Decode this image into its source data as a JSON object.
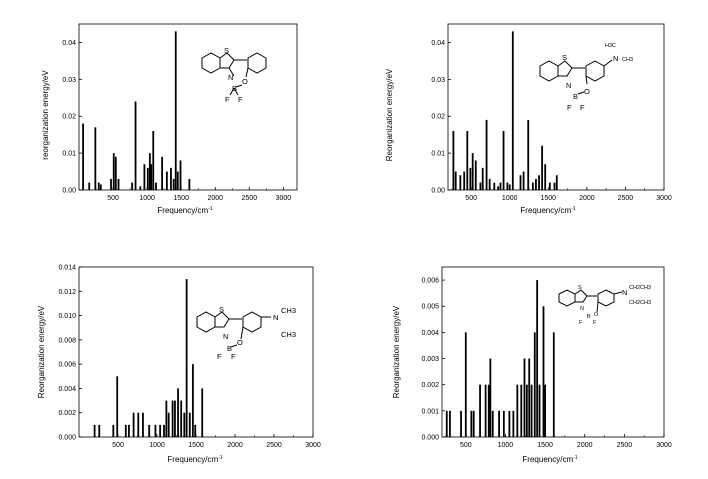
{
  "chart_data": [
    {
      "type": "bar",
      "xlabel": "Frequency/cm",
      "xlabel_sup": "-1",
      "ylabel": "reorganization energy/eV",
      "xlim": [
        0,
        3200
      ],
      "ylim": [
        0,
        0.045
      ],
      "xticks": [
        500,
        1000,
        1500,
        2000,
        2500,
        3000
      ],
      "yticks": [
        0.0,
        0.01,
        0.02,
        0.03,
        0.04
      ],
      "ytick_labels": [
        "0.00",
        "0.01",
        "0.02",
        "0.03",
        "0.04"
      ],
      "molecule_labels": [
        "S",
        "N",
        "B",
        "O",
        "F",
        "F"
      ],
      "bars": [
        {
          "x": 60,
          "y": 0.018
        },
        {
          "x": 150,
          "y": 0.002
        },
        {
          "x": 240,
          "y": 0.017
        },
        {
          "x": 290,
          "y": 0.002
        },
        {
          "x": 320,
          "y": 0.0015
        },
        {
          "x": 470,
          "y": 0.003
        },
        {
          "x": 510,
          "y": 0.01
        },
        {
          "x": 540,
          "y": 0.009
        },
        {
          "x": 580,
          "y": 0.003
        },
        {
          "x": 780,
          "y": 0.002
        },
        {
          "x": 830,
          "y": 0.024
        },
        {
          "x": 900,
          "y": 0.001
        },
        {
          "x": 960,
          "y": 0.007
        },
        {
          "x": 1010,
          "y": 0.006
        },
        {
          "x": 1040,
          "y": 0.01
        },
        {
          "x": 1060,
          "y": 0.007
        },
        {
          "x": 1090,
          "y": 0.016
        },
        {
          "x": 1130,
          "y": 0.002
        },
        {
          "x": 1220,
          "y": 0.009
        },
        {
          "x": 1290,
          "y": 0.005
        },
        {
          "x": 1350,
          "y": 0.006
        },
        {
          "x": 1390,
          "y": 0.003
        },
        {
          "x": 1420,
          "y": 0.043
        },
        {
          "x": 1450,
          "y": 0.005
        },
        {
          "x": 1490,
          "y": 0.008
        },
        {
          "x": 1620,
          "y": 0.003
        }
      ]
    },
    {
      "type": "bar",
      "xlabel": "Frequency/cm",
      "xlabel_sup": "-1",
      "ylabel": "Reorganization energy/eV",
      "xlim": [
        200,
        3000
      ],
      "ylim": [
        0,
        0.045
      ],
      "xticks": [
        500,
        1000,
        1500,
        2000,
        2500,
        3000
      ],
      "yticks": [
        0.0,
        0.01,
        0.02,
        0.03,
        0.04
      ],
      "ytick_labels": [
        "0.00",
        "0.01",
        "0.02",
        "0.03",
        "0.04"
      ],
      "molecule_labels": [
        "H3C",
        "N",
        "CH3",
        "S",
        "N",
        "B",
        "O",
        "F",
        "F"
      ],
      "bars": [
        {
          "x": 270,
          "y": 0.016
        },
        {
          "x": 300,
          "y": 0.005
        },
        {
          "x": 360,
          "y": 0.004
        },
        {
          "x": 410,
          "y": 0.005
        },
        {
          "x": 450,
          "y": 0.016
        },
        {
          "x": 490,
          "y": 0.006
        },
        {
          "x": 520,
          "y": 0.01
        },
        {
          "x": 560,
          "y": 0.008
        },
        {
          "x": 620,
          "y": 0.002
        },
        {
          "x": 650,
          "y": 0.006
        },
        {
          "x": 700,
          "y": 0.019
        },
        {
          "x": 740,
          "y": 0.003
        },
        {
          "x": 800,
          "y": 0.002
        },
        {
          "x": 850,
          "y": 0.001
        },
        {
          "x": 880,
          "y": 0.002
        },
        {
          "x": 920,
          "y": 0.016
        },
        {
          "x": 970,
          "y": 0.002
        },
        {
          "x": 1000,
          "y": 0.0015
        },
        {
          "x": 1040,
          "y": 0.043
        },
        {
          "x": 1140,
          "y": 0.004
        },
        {
          "x": 1180,
          "y": 0.005
        },
        {
          "x": 1240,
          "y": 0.019
        },
        {
          "x": 1300,
          "y": 0.002
        },
        {
          "x": 1340,
          "y": 0.003
        },
        {
          "x": 1380,
          "y": 0.004
        },
        {
          "x": 1420,
          "y": 0.012
        },
        {
          "x": 1460,
          "y": 0.007
        },
        {
          "x": 1520,
          "y": 0.002
        },
        {
          "x": 1580,
          "y": 0.002
        },
        {
          "x": 1610,
          "y": 0.004
        }
      ]
    },
    {
      "type": "bar",
      "xlabel": "Frequency/cm",
      "xlabel_sup": "-1",
      "ylabel": "Reorganization energy/eV",
      "xlim": [
        0,
        3000
      ],
      "ylim": [
        0,
        0.014
      ],
      "xticks": [
        500,
        1000,
        1500,
        2000,
        2500,
        3000
      ],
      "yticks": [
        0.0,
        0.002,
        0.004,
        0.006,
        0.008,
        0.01,
        0.012,
        0.014
      ],
      "ytick_labels": [
        "0.000",
        "0.002",
        "0.004",
        "0.006",
        "0.008",
        "0.010",
        "0.012",
        "0.014"
      ],
      "molecule_labels": [
        "S",
        "N",
        "N",
        "CH3",
        "CH3",
        "B",
        "O",
        "F",
        "F"
      ],
      "bars": [
        {
          "x": 200,
          "y": 0.001
        },
        {
          "x": 260,
          "y": 0.001
        },
        {
          "x": 440,
          "y": 0.001
        },
        {
          "x": 490,
          "y": 0.005
        },
        {
          "x": 600,
          "y": 0.001
        },
        {
          "x": 640,
          "y": 0.001
        },
        {
          "x": 700,
          "y": 0.002
        },
        {
          "x": 760,
          "y": 0.002
        },
        {
          "x": 820,
          "y": 0.002
        },
        {
          "x": 900,
          "y": 0.001
        },
        {
          "x": 980,
          "y": 0.001
        },
        {
          "x": 1040,
          "y": 0.001
        },
        {
          "x": 1090,
          "y": 0.001
        },
        {
          "x": 1120,
          "y": 0.003
        },
        {
          "x": 1150,
          "y": 0.002
        },
        {
          "x": 1200,
          "y": 0.003
        },
        {
          "x": 1230,
          "y": 0.003
        },
        {
          "x": 1270,
          "y": 0.004
        },
        {
          "x": 1310,
          "y": 0.003
        },
        {
          "x": 1350,
          "y": 0.002
        },
        {
          "x": 1380,
          "y": 0.013
        },
        {
          "x": 1420,
          "y": 0.002
        },
        {
          "x": 1460,
          "y": 0.006
        },
        {
          "x": 1490,
          "y": 0.001
        },
        {
          "x": 1580,
          "y": 0.004
        }
      ]
    },
    {
      "type": "bar",
      "xlabel": "Frequency/cm",
      "xlabel_sup": "-1",
      "ylabel": "Reorganization energy/eV",
      "xlim": [
        200,
        3000
      ],
      "ylim": [
        0,
        0.0065
      ],
      "xticks": [
        500,
        1000,
        1500,
        2000,
        2500,
        3000
      ],
      "yticks": [
        0.0,
        0.001,
        0.002,
        0.003,
        0.004,
        0.005,
        0.006
      ],
      "ytick_labels": [
        "0.000",
        "0.001",
        "0.002",
        "0.003",
        "0.004",
        "0.005",
        "0.006"
      ],
      "molecule_labels": [
        "S",
        "N",
        "N",
        "CH2CH3",
        "CH2CH3",
        "F",
        "B",
        "O",
        "F"
      ],
      "bars": [
        {
          "x": 260,
          "y": 0.001
        },
        {
          "x": 300,
          "y": 0.001
        },
        {
          "x": 440,
          "y": 0.001
        },
        {
          "x": 500,
          "y": 0.004
        },
        {
          "x": 570,
          "y": 0.001
        },
        {
          "x": 600,
          "y": 0.001
        },
        {
          "x": 680,
          "y": 0.002
        },
        {
          "x": 750,
          "y": 0.002
        },
        {
          "x": 790,
          "y": 0.002
        },
        {
          "x": 810,
          "y": 0.003
        },
        {
          "x": 840,
          "y": 0.001
        },
        {
          "x": 920,
          "y": 0.001
        },
        {
          "x": 980,
          "y": 0.001
        },
        {
          "x": 1050,
          "y": 0.001
        },
        {
          "x": 1100,
          "y": 0.001
        },
        {
          "x": 1150,
          "y": 0.002
        },
        {
          "x": 1200,
          "y": 0.002
        },
        {
          "x": 1240,
          "y": 0.003
        },
        {
          "x": 1270,
          "y": 0.002
        },
        {
          "x": 1300,
          "y": 0.003
        },
        {
          "x": 1330,
          "y": 0.002
        },
        {
          "x": 1370,
          "y": 0.004
        },
        {
          "x": 1400,
          "y": 0.006
        },
        {
          "x": 1430,
          "y": 0.002
        },
        {
          "x": 1480,
          "y": 0.005
        },
        {
          "x": 1500,
          "y": 0.002
        },
        {
          "x": 1610,
          "y": 0.004
        }
      ]
    }
  ]
}
